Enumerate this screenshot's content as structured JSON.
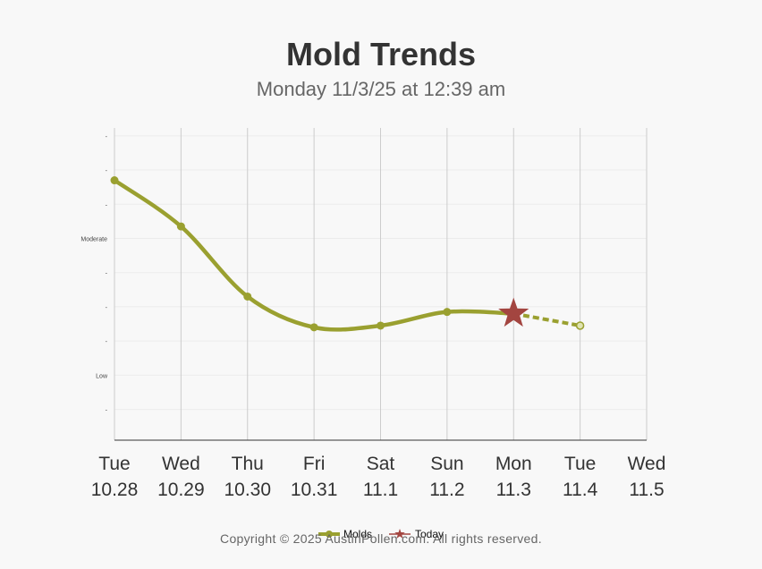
{
  "chart_data": {
    "type": "line",
    "title": "Mold Trends",
    "subtitle": "Monday 11/3/25 at 12:39 am",
    "x_days": [
      "Tue",
      "Wed",
      "Thu",
      "Fri",
      "Sat",
      "Sun",
      "Mon",
      "Tue",
      "Wed"
    ],
    "x_dates": [
      "10.28",
      "10.29",
      "10.30",
      "10.31",
      "11.1",
      "11.2",
      "11.3",
      "11.4",
      "11.5"
    ],
    "y_ticks": [
      "-",
      "Low",
      "-",
      "-",
      "-",
      "Moderate",
      "-",
      "-",
      "-"
    ],
    "ylim": [
      0,
      9
    ],
    "series": [
      {
        "name": "Molds",
        "color": "#9aa030",
        "values": [
          7.6,
          6.25,
          4.2,
          3.3,
          3.35,
          3.75,
          3.7,
          3.35
        ],
        "forecast_from_index": 6
      }
    ],
    "today": {
      "name": "Today",
      "index": 6,
      "color": "#a34540",
      "marker": "star"
    },
    "grid": true,
    "legend_position": "bottom"
  },
  "footer": {
    "copyright": "Copyright © 2025 AustinPollen.com.  All rights reserved."
  }
}
